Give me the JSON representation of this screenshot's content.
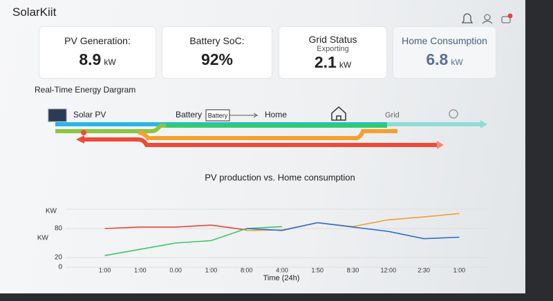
{
  "header": {
    "title": "SolarKiit"
  },
  "cards": [
    {
      "label": "PV Generation:",
      "value": 8.9,
      "unit": "kW"
    },
    {
      "label": "Battery SoC:",
      "value": "92%"
    },
    {
      "label": "Grid Status",
      "sublabel": "Exporting",
      "value": 2.1,
      "unit": "kW"
    },
    {
      "label": "Home Consumption",
      "value": 6.8,
      "unit": "kW"
    }
  ],
  "diagram": {
    "title": "Real-Time Energy Dargram",
    "solar": "Solar PV",
    "battery": "Battery",
    "battery_box": "Battery",
    "home": "Home",
    "grid": "Grid"
  },
  "chart": {
    "type": "line",
    "title": "PV production vs. Home consumption",
    "x_label": "Time (24h)",
    "y_labels": [
      "KW",
      "KW"
    ],
    "categories": [
      "1:00",
      "1:00",
      "0.00",
      "1:00",
      "8:00",
      "4:00",
      "1:50",
      "8:30",
      "12:00",
      "2:30",
      "1:00"
    ],
    "ylim": [
      0,
      120
    ],
    "yticks": [
      0,
      20,
      80
    ],
    "grid": true,
    "series": [
      {
        "color": "#e8463a",
        "values": [
          80,
          83,
          83,
          87,
          77,
          null,
          null,
          null,
          null,
          null,
          null
        ]
      },
      {
        "color": "#3cc46b",
        "values": [
          24,
          37,
          50,
          55,
          80,
          84,
          null,
          null,
          null,
          null,
          null
        ]
      },
      {
        "color": "#f0a030",
        "values": [
          null,
          null,
          null,
          null,
          76,
          77,
          92,
          84,
          98,
          104,
          111
        ]
      },
      {
        "color": "#2f6fd0",
        "values": [
          null,
          null,
          null,
          null,
          80,
          76,
          92,
          83,
          74,
          59,
          62
        ]
      }
    ]
  }
}
